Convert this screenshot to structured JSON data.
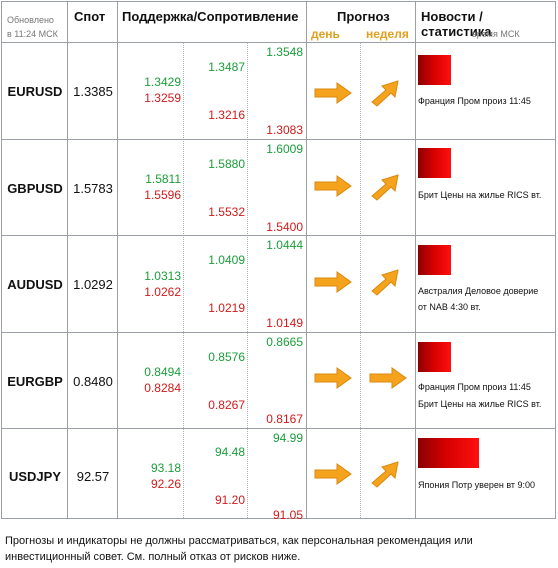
{
  "header": {
    "updated_line1": "Обновлено",
    "updated_line2": "в 11:24 МСК",
    "spot": "Спот",
    "support_resistance": "Поддержка/Сопротивление",
    "forecast": "Прогноз",
    "day": "день",
    "week": "неделя",
    "news_stats": "Новости / статистика",
    "msk_time": "время МСК"
  },
  "rows": [
    {
      "pair": "EURUSD",
      "spot": "1.3385",
      "l1": [
        "1.3429",
        "1.3259"
      ],
      "l2": [
        "1.3487",
        "1.3216"
      ],
      "l3": [
        "1.3548",
        "1.3083"
      ],
      "day_icon": "arrow-right-icon",
      "week_icon": "arrow-up-right-icon",
      "news": [
        "Франция Пром произ 11:45"
      ]
    },
    {
      "pair": "GBPUSD",
      "spot": "1.5783",
      "l1": [
        "1.5811",
        "1.5596"
      ],
      "l2": [
        "1.5880",
        "1.5532"
      ],
      "l3": [
        "1.6009",
        "1.5400"
      ],
      "day_icon": "arrow-right-icon",
      "week_icon": "arrow-up-right-icon",
      "news": [
        "Брит Цены на жилье RICS вт."
      ]
    },
    {
      "pair": "AUDUSD",
      "spot": "1.0292",
      "l1": [
        "1.0313",
        "1.0262"
      ],
      "l2": [
        "1.0409",
        "1.0219"
      ],
      "l3": [
        "1.0444",
        "1.0149"
      ],
      "day_icon": "arrow-right-icon",
      "week_icon": "arrow-up-right-icon",
      "news": [
        "Австралия Деловое доверие",
        "от NAB 4:30 вт."
      ]
    },
    {
      "pair": "EURGBP",
      "spot": "0.8480",
      "l1": [
        "0.8494",
        "0.8284"
      ],
      "l2": [
        "0.8576",
        "0.8267"
      ],
      "l3": [
        "0.8665",
        "0.8167"
      ],
      "day_icon": "arrow-right-icon",
      "week_icon": "arrow-right-icon",
      "news": [
        "Франция Пром произ 11:45",
        "Брит Цены на жилье RICS вт."
      ]
    },
    {
      "pair": "USDJPY",
      "spot": "92.57",
      "l1": [
        "93.18",
        "92.26"
      ],
      "l2": [
        "94.48",
        "91.20"
      ],
      "l3": [
        "94.99",
        "91.05"
      ],
      "day_icon": "arrow-right-icon",
      "week_icon": "arrow-up-right-icon",
      "news": [
        "Япония Потр уверен вт 9:00"
      ]
    }
  ],
  "colors": {
    "support": "#1a9e3a",
    "resistance": "#d21a1a",
    "arrow": "#f5a21c",
    "news_bar": "#d40000"
  },
  "footer": "Прогнозы и индикаторы не должны рассматриваться, как персональная рекомендация или инвестиционный совет. См. полный отказ от рисков ниже."
}
